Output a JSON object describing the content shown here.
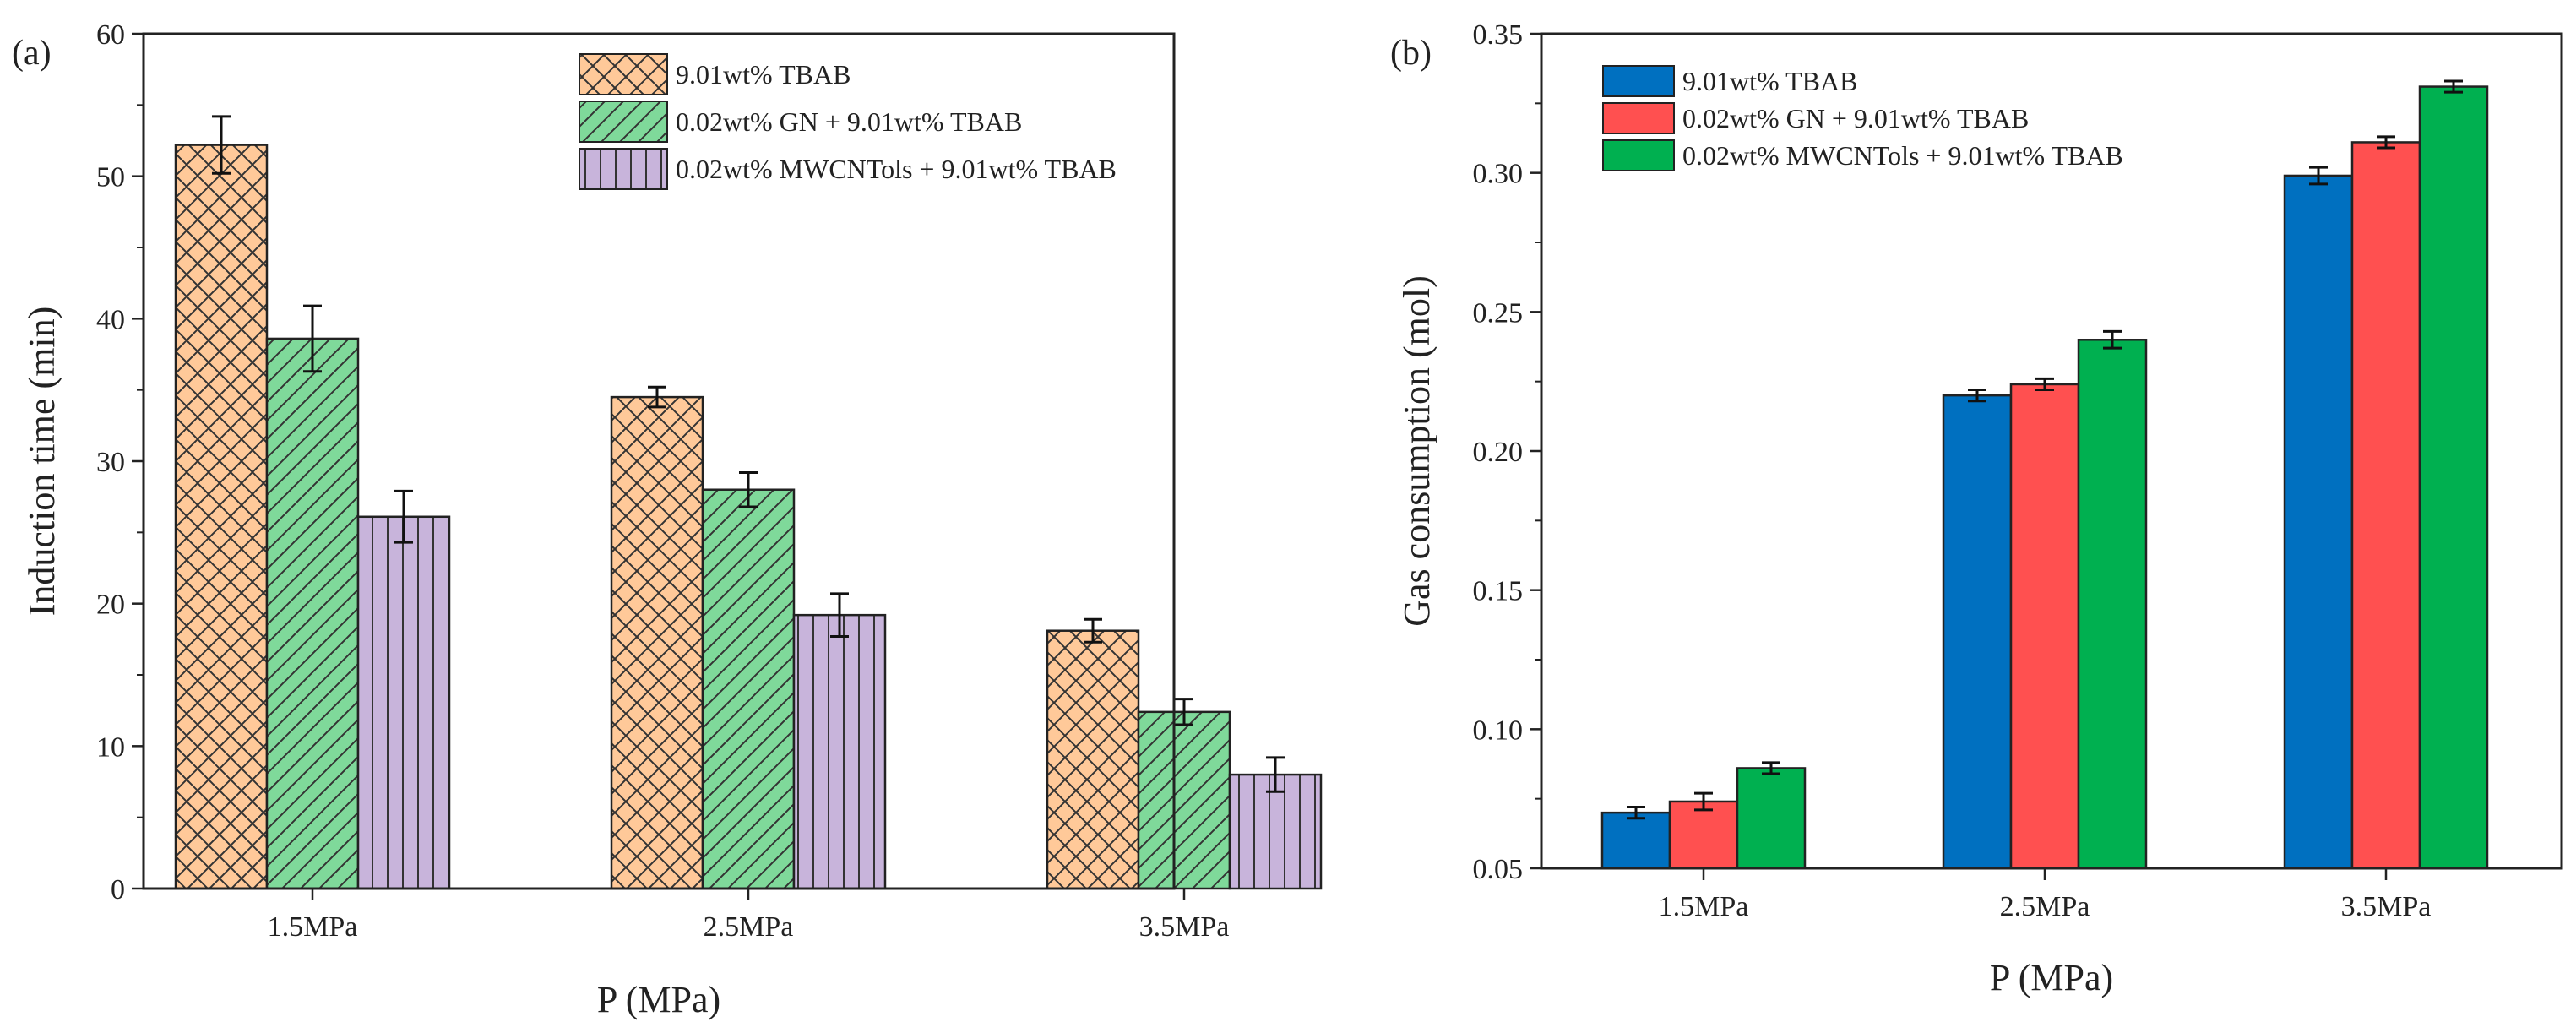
{
  "chart_data": [
    {
      "panel": "(a)",
      "type": "bar",
      "categories": [
        "1.5MPa",
        "2.5MPa",
        "3.5MPa"
      ],
      "series": [
        {
          "name": "9.01wt% TBAB",
          "values": [
            52.2,
            34.5,
            18.1
          ],
          "errors": [
            2.0,
            0.7,
            0.8
          ],
          "color": "#FFC999",
          "pattern": "crosshatch"
        },
        {
          "name": "0.02wt% GN + 9.01wt% TBAB",
          "values": [
            38.6,
            28.0,
            12.4
          ],
          "errors": [
            2.3,
            1.2,
            0.9
          ],
          "color": "#7FD99A",
          "pattern": "diagonal"
        },
        {
          "name": "0.02wt% MWCNTols + 9.01wt% TBAB",
          "values": [
            26.1,
            19.2,
            8.0
          ],
          "errors": [
            1.8,
            1.5,
            1.2
          ],
          "color": "#C8B4DB",
          "pattern": "vertical"
        }
      ],
      "title": "",
      "xlabel": "P (MPa)",
      "ylabel": "Induction time (min)",
      "ylim": [
        0,
        60
      ],
      "yticks": [
        "0",
        "10",
        "20",
        "30",
        "40",
        "50",
        "60"
      ],
      "legend_position": "top-right",
      "grid": false
    },
    {
      "panel": "(b)",
      "type": "bar",
      "categories": [
        "1.5MPa",
        "2.5MPa",
        "3.5MPa"
      ],
      "series": [
        {
          "name": "9.01wt% TBAB",
          "values": [
            0.07,
            0.22,
            0.299
          ],
          "errors": [
            0.002,
            0.002,
            0.003
          ],
          "color": "#0070C0"
        },
        {
          "name": "0.02wt% GN + 9.01wt% TBAB",
          "values": [
            0.074,
            0.224,
            0.311
          ],
          "errors": [
            0.003,
            0.002,
            0.002
          ],
          "color": "#FF5050"
        },
        {
          "name": "0.02wt% MWCNTols + 9.01wt% TBAB",
          "values": [
            0.086,
            0.24,
            0.331
          ],
          "errors": [
            0.002,
            0.003,
            0.002
          ],
          "color": "#00B050"
        }
      ],
      "title": "",
      "xlabel": "P (MPa)",
      "ylabel": "Gas consumption (mol)",
      "ylim": [
        0.05,
        0.35
      ],
      "yticks": [
        "0.05",
        "0.10",
        "0.15",
        "0.20",
        "0.25",
        "0.30",
        "0.35"
      ],
      "legend_position": "top-left",
      "grid": false
    }
  ]
}
